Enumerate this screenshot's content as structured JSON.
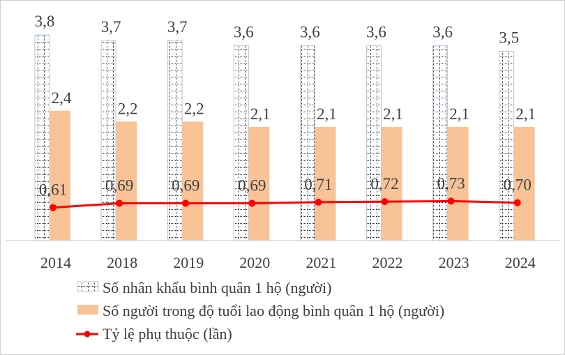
{
  "chart_data": {
    "type": "bar",
    "categories": [
      "2014",
      "2018",
      "2019",
      "2020",
      "2021",
      "2022",
      "2023",
      "2024"
    ],
    "series": [
      {
        "name": "Số nhân khẩu bình quân 1 hộ (người)",
        "type": "bar",
        "pattern": "dotted-grid",
        "color": "#8eaadb",
        "values": [
          3.8,
          3.7,
          3.7,
          3.6,
          3.6,
          3.6,
          3.6,
          3.5
        ],
        "labels": [
          "3,8",
          "3,7",
          "3,7",
          "3,6",
          "3,6",
          "3,6",
          "3,6",
          "3,5"
        ]
      },
      {
        "name": "Số người  trong độ tuổi lao động bình quân 1 hộ (người)",
        "type": "bar",
        "color": "#f8c396",
        "values": [
          2.4,
          2.2,
          2.2,
          2.1,
          2.1,
          2.1,
          2.1,
          2.1
        ],
        "labels": [
          "2,4",
          "2,2",
          "2,2",
          "2,1",
          "2,1",
          "2,1",
          "2,1",
          "2,1"
        ]
      },
      {
        "name": "Tỷ lệ phụ thuộc (lần)",
        "type": "line",
        "color": "#ff0000",
        "values": [
          0.61,
          0.69,
          0.69,
          0.69,
          0.71,
          0.72,
          0.73,
          0.7
        ],
        "labels": [
          "0,61",
          "0,69",
          "0,69",
          "0,69",
          "0,71",
          "0,72",
          "0,73",
          "0,70"
        ]
      }
    ],
    "ylim": [
      0,
      3.8
    ],
    "grid": false,
    "legend_placement": "bottom"
  }
}
